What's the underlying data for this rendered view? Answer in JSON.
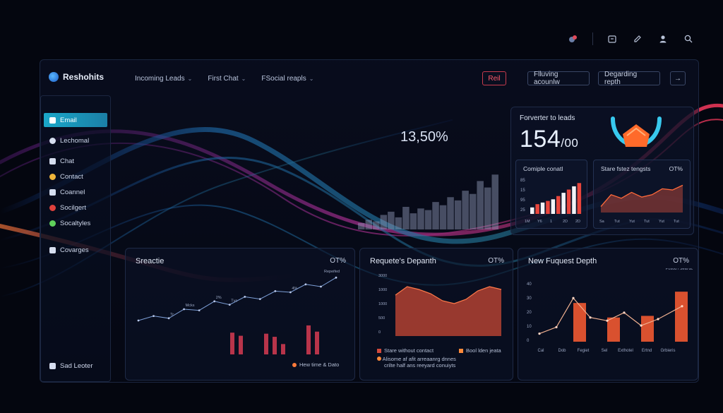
{
  "top_icons": [
    "notification-icon",
    "calendar-icon",
    "edit-icon",
    "user-icon",
    "search-icon"
  ],
  "header": {
    "brand": "Reshohits",
    "nav": [
      {
        "label": "Incoming Leads"
      },
      {
        "label": "First Chat"
      },
      {
        "label": "FSocial reapls"
      }
    ],
    "buttons": {
      "reset": "Reil",
      "flowing": "Flluving acounlw",
      "degrading": "Degarding repth",
      "arrow": "→"
    }
  },
  "sidebar": {
    "items": [
      {
        "label": "Email",
        "icon": "mail-icon",
        "active": true,
        "color": "#1aa7c9"
      },
      {
        "label": "Lechomal",
        "icon": "user-icon",
        "active": false,
        "color": "#d6deef"
      },
      {
        "label": "Chat",
        "icon": "chat-icon",
        "active": false,
        "color": "#d6deef"
      },
      {
        "label": "Contact",
        "icon": "contact-icon",
        "active": false,
        "color": "#f0b53a"
      },
      {
        "label": "Coannel",
        "icon": "channel-icon",
        "active": false,
        "color": "#d6deef"
      },
      {
        "label": "Socilgert",
        "icon": "social-icon",
        "active": false,
        "color": "#e0413c"
      },
      {
        "label": "Socaltyles",
        "icon": "styles-icon",
        "active": false,
        "color": "#5fd05a"
      },
      {
        "label": "Covarges",
        "icon": "search-icon",
        "active": false,
        "color": "#d6deef"
      }
    ],
    "footer": "Sad Leoter"
  },
  "hero": {
    "percent": "13,50%",
    "bars": [
      8,
      12,
      10,
      18,
      22,
      15,
      28,
      20,
      26,
      24,
      34,
      30,
      40,
      36,
      48,
      44,
      60,
      52,
      68
    ]
  },
  "kpi": {
    "title": "Forverter to leads",
    "value": "154",
    "unit": "/00",
    "minis": [
      {
        "title": "Comiple conatl",
        "ylabels": [
          "85",
          "15",
          "95",
          "25"
        ],
        "xlabels": [
          "1M",
          "Y6",
          "1",
          "2D",
          "2D"
        ],
        "bars": [
          8,
          12,
          14,
          16,
          18,
          22,
          26,
          30,
          34,
          38
        ],
        "colors": [
          "#f2f4f8",
          "#e8453c",
          "#f2f4f8",
          "#e8453c",
          "#f2f4f8",
          "#e8453c",
          "#f2f4f8",
          "#e8453c",
          "#f2f4f8",
          "#e8453c"
        ]
      },
      {
        "title": "Stare fstez tengsts",
        "pct": "OT%",
        "xlabels": [
          "Sa",
          "Tut",
          "Yut",
          "Tut",
          "Yut",
          "Tut"
        ],
        "line": [
          10,
          30,
          24,
          34,
          26,
          30,
          40,
          38,
          46
        ]
      }
    ]
  },
  "panels": [
    {
      "title": "Sreactie",
      "pct": "OT%",
      "tag": "Repeifed",
      "annotations": [
        "Mcks",
        "Tvs",
        "4%",
        "Tc",
        "2%"
      ],
      "line": [
        20,
        28,
        24,
        40,
        38,
        54,
        48,
        62,
        58,
        72,
        70,
        84,
        80,
        96
      ],
      "bars": [
        42,
        36,
        0,
        0,
        40,
        34,
        20,
        0,
        0,
        56,
        44
      ],
      "legend": "Hew time & Dato"
    },
    {
      "title": "Requete's Depanth",
      "pct": "OT%",
      "ylabels": [
        "3000",
        "1000",
        "1000",
        "500",
        "0"
      ],
      "area": [
        58,
        70,
        66,
        60,
        50,
        46,
        52,
        64,
        70,
        66
      ],
      "legend_a": "Stare without contact",
      "legend_b": "Bool lden jeata",
      "note_line1": "Alisome af afit arreaanrg dnnes",
      "note_line2": "crilte half ans reeyard conuiyts"
    },
    {
      "title": "New Fuquest Depth",
      "pct": "OT%",
      "tag": "Posod / Sela dc",
      "ylabels": [
        "40",
        "30",
        "20",
        "10",
        "0"
      ],
      "xlabels": [
        "Cal",
        "Dob",
        "Fegiet",
        "Sel",
        "Exthotel",
        "Ertnd",
        "Grbieris"
      ],
      "bars": [
        0,
        0,
        48,
        0,
        30,
        0,
        32,
        0,
        62
      ],
      "line": [
        10,
        18,
        54,
        30,
        26,
        36,
        20,
        28,
        44
      ]
    }
  ]
}
